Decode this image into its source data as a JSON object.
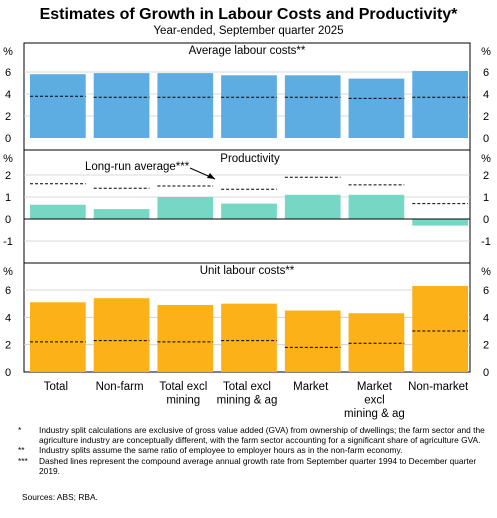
{
  "chart_data": {
    "type": "bar",
    "title": "Estimates of Growth in Labour Costs and Productivity*",
    "subtitle": "Year-ended, September quarter 2025",
    "categories": [
      "Total",
      "Non-farm",
      "Total excl\nmining",
      "Total excl\nmining & ag",
      "Market",
      "Market\nexcl\nmining & ag",
      "Non-market"
    ],
    "unit": "%",
    "grid": true,
    "panels": [
      {
        "title": "Average labour costs**",
        "color": "#5dade2",
        "ylim": [
          0,
          7
        ],
        "yticks": [
          2,
          4,
          6
        ],
        "values": [
          5.8,
          5.9,
          5.9,
          5.7,
          5.7,
          5.4,
          6.1
        ],
        "long_run_average": [
          3.8,
          3.7,
          3.7,
          3.7,
          3.7,
          3.6,
          3.7
        ]
      },
      {
        "title": "Productivity",
        "color": "#76d7c4",
        "ylim": [
          -1.6,
          2.6
        ],
        "yticks": [
          -1,
          0,
          1,
          2
        ],
        "values": [
          0.65,
          0.45,
          1.0,
          0.7,
          1.1,
          1.1,
          -0.3
        ],
        "long_run_average": [
          1.6,
          1.4,
          1.5,
          1.35,
          1.9,
          1.55,
          0.7
        ],
        "annotation": "Long-run average***"
      },
      {
        "title": "Unit labour costs**",
        "color": "#fbb117",
        "ylim": [
          0,
          7
        ],
        "yticks": [
          2,
          4,
          6
        ],
        "values": [
          5.1,
          5.4,
          4.9,
          5.0,
          4.5,
          4.3,
          6.3
        ],
        "long_run_average": [
          2.2,
          2.3,
          2.2,
          2.3,
          1.8,
          2.1,
          3.0
        ]
      }
    ],
    "legend": "none"
  },
  "notes": [
    {
      "marker": "*",
      "text": "Industry split calculations are exclusive of gross value added (GVA) from ownership of dwellings; the farm sector and the agriculture industry are conceptually different, with the farm sector accounting for a significant share of agriculture GVA."
    },
    {
      "marker": "**",
      "text": "Industry splits assume the same ratio of employee to employer hours as in the non-farm economy."
    },
    {
      "marker": "***",
      "text": "Dashed lines represent the compound average annual growth rate from September quarter 1994 to December quarter 2019."
    }
  ],
  "sources": "Sources: ABS; RBA."
}
